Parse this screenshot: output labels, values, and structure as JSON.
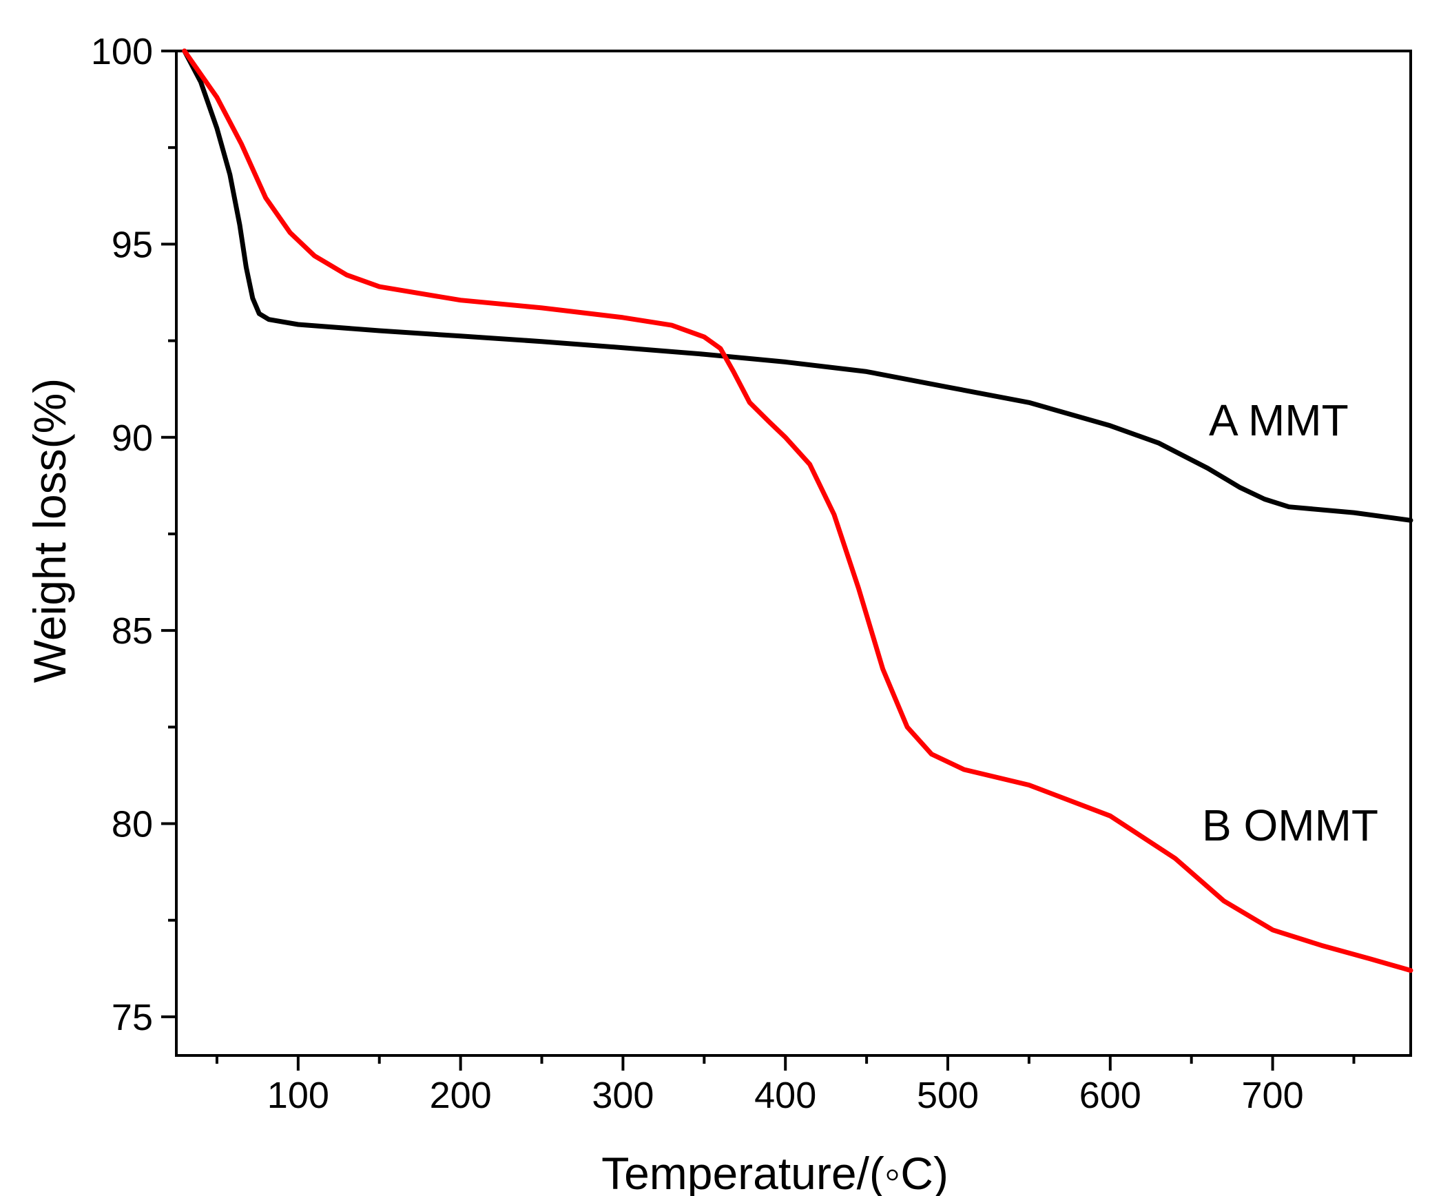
{
  "chart_data": {
    "type": "line",
    "title": "",
    "xlabel": "Temperature/(◦C)",
    "ylabel": "Weight loss(%)",
    "xlim": [
      25,
      785
    ],
    "ylim": [
      74,
      100
    ],
    "x_ticks": [
      100,
      200,
      300,
      400,
      500,
      600,
      700
    ],
    "x_minor_ticks": [
      50,
      150,
      250,
      350,
      450,
      550,
      650,
      750
    ],
    "y_ticks": [
      75,
      80,
      85,
      90,
      95,
      100
    ],
    "y_minor_ticks": [
      77.5,
      82.5,
      87.5,
      92.5,
      97.5
    ],
    "grid": false,
    "legend": "inline labels",
    "series": [
      {
        "name": "A MMT",
        "label": "A MMT",
        "color": "#000000",
        "points": [
          [
            30,
            100
          ],
          [
            40,
            99.2
          ],
          [
            50,
            98.0
          ],
          [
            58,
            96.8
          ],
          [
            64,
            95.5
          ],
          [
            68,
            94.4
          ],
          [
            72,
            93.6
          ],
          [
            76,
            93.2
          ],
          [
            82,
            93.05
          ],
          [
            100,
            92.92
          ],
          [
            150,
            92.76
          ],
          [
            200,
            92.62
          ],
          [
            250,
            92.48
          ],
          [
            300,
            92.32
          ],
          [
            350,
            92.15
          ],
          [
            400,
            91.95
          ],
          [
            450,
            91.7
          ],
          [
            500,
            91.3
          ],
          [
            550,
            90.9
          ],
          [
            600,
            90.3
          ],
          [
            630,
            89.85
          ],
          [
            660,
            89.2
          ],
          [
            680,
            88.7
          ],
          [
            695,
            88.4
          ],
          [
            710,
            88.2
          ],
          [
            750,
            88.05
          ],
          [
            785,
            87.85
          ]
        ]
      },
      {
        "name": "B OMMT",
        "label": "B OMMT",
        "color": "#ff0000",
        "points": [
          [
            30,
            100
          ],
          [
            50,
            98.8
          ],
          [
            65,
            97.6
          ],
          [
            80,
            96.2
          ],
          [
            95,
            95.3
          ],
          [
            110,
            94.7
          ],
          [
            130,
            94.2
          ],
          [
            150,
            93.9
          ],
          [
            200,
            93.55
          ],
          [
            250,
            93.35
          ],
          [
            300,
            93.1
          ],
          [
            330,
            92.9
          ],
          [
            350,
            92.6
          ],
          [
            360,
            92.3
          ],
          [
            368,
            91.7
          ],
          [
            378,
            90.9
          ],
          [
            390,
            90.4
          ],
          [
            400,
            90.0
          ],
          [
            415,
            89.3
          ],
          [
            430,
            88.0
          ],
          [
            445,
            86.1
          ],
          [
            460,
            84.0
          ],
          [
            475,
            82.5
          ],
          [
            490,
            81.8
          ],
          [
            510,
            81.4
          ],
          [
            550,
            81.0
          ],
          [
            600,
            80.2
          ],
          [
            640,
            79.1
          ],
          [
            670,
            78.0
          ],
          [
            700,
            77.25
          ],
          [
            730,
            76.85
          ],
          [
            760,
            76.5
          ],
          [
            785,
            76.2
          ]
        ]
      }
    ]
  }
}
